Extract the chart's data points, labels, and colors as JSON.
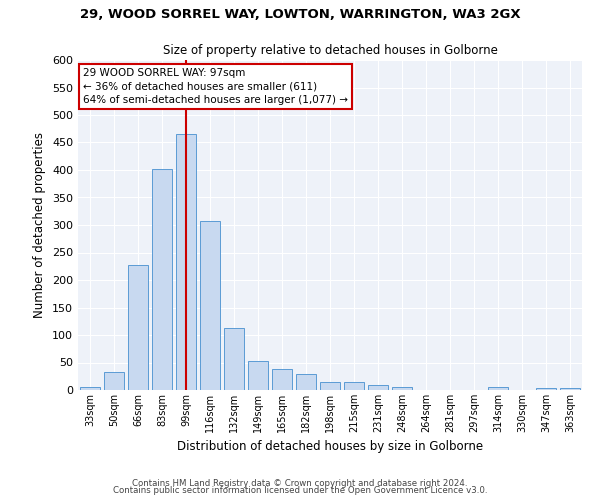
{
  "title1": "29, WOOD SORREL WAY, LOWTON, WARRINGTON, WA3 2GX",
  "title2": "Size of property relative to detached houses in Golborne",
  "xlabel": "Distribution of detached houses by size in Golborne",
  "ylabel": "Number of detached properties",
  "bar_labels": [
    "33sqm",
    "50sqm",
    "66sqm",
    "83sqm",
    "99sqm",
    "116sqm",
    "132sqm",
    "149sqm",
    "165sqm",
    "182sqm",
    "198sqm",
    "215sqm",
    "231sqm",
    "248sqm",
    "264sqm",
    "281sqm",
    "297sqm",
    "314sqm",
    "330sqm",
    "347sqm",
    "363sqm"
  ],
  "bar_values": [
    5,
    32,
    228,
    402,
    465,
    307,
    112,
    53,
    39,
    30,
    14,
    14,
    9,
    5,
    0,
    0,
    0,
    5,
    0,
    4,
    4
  ],
  "bar_color": "#c8d9f0",
  "bar_edge_color": "#5b9bd5",
  "vline_x": 4,
  "vline_color": "#cc0000",
  "ylim": [
    0,
    600
  ],
  "yticks": [
    0,
    50,
    100,
    150,
    200,
    250,
    300,
    350,
    400,
    450,
    500,
    550,
    600
  ],
  "annotation_text": "29 WOOD SORREL WAY: 97sqm\n← 36% of detached houses are smaller (611)\n64% of semi-detached houses are larger (1,077) →",
  "annotation_box_color": "#ffffff",
  "annotation_box_edge": "#cc0000",
  "footer1": "Contains HM Land Registry data © Crown copyright and database right 2024.",
  "footer2": "Contains public sector information licensed under the Open Government Licence v3.0.",
  "bg_color": "#eef2f9"
}
